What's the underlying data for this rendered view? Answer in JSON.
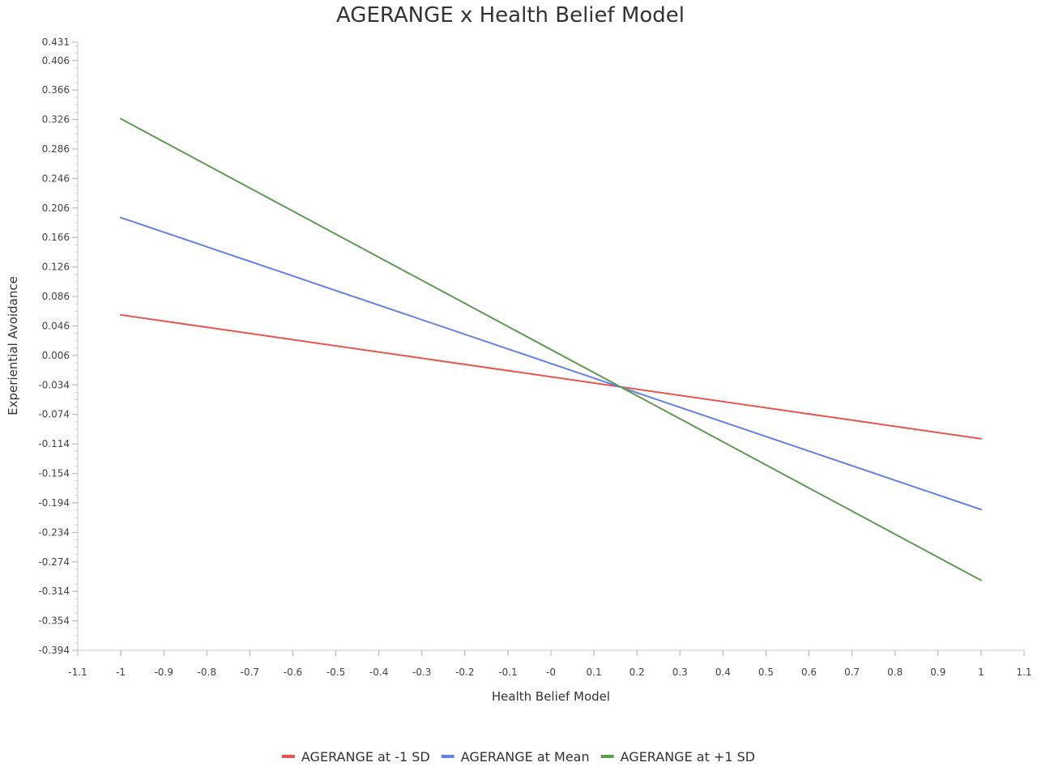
{
  "chart_data": {
    "type": "line",
    "title": "AGERANGE x Health Belief Model",
    "xlabel": "Health Belief Model",
    "ylabel": "Experiential Avoidance",
    "xlim": [
      -1.1,
      1.1
    ],
    "ylim": [
      -0.394,
      0.431
    ],
    "x_ticks": [
      -1.1,
      -1,
      -0.9,
      -0.8,
      -0.7,
      -0.6,
      -0.5,
      -0.4,
      -0.3,
      -0.2,
      -0.1,
      0,
      0.1,
      0.2,
      0.3,
      0.4,
      0.5,
      0.6,
      0.7,
      0.8,
      0.9,
      1,
      1.1
    ],
    "x_tick_labels": [
      "-1.1",
      "-1",
      "-0.9",
      "-0.8",
      "-0.7",
      "-0.6",
      "-0.5",
      "-0.4",
      "-0.3",
      "-0.2",
      "-0.1",
      "-0",
      "0.1",
      "0.2",
      "0.3",
      "0.4",
      "0.5",
      "0.6",
      "0.7",
      "0.8",
      "0.9",
      "1",
      "1.1"
    ],
    "y_ticks": [
      0.431,
      0.406,
      0.366,
      0.326,
      0.286,
      0.246,
      0.206,
      0.166,
      0.126,
      0.086,
      0.046,
      0.006,
      -0.034,
      -0.074,
      -0.114,
      -0.154,
      -0.194,
      -0.234,
      -0.274,
      -0.314,
      -0.354,
      -0.394
    ],
    "y_tick_labels": [
      "0.431",
      "0.406",
      "0.366",
      "0.326",
      "0.286",
      "0.246",
      "0.206",
      "0.166",
      "0.126",
      "0.086",
      "0.046",
      "0.006",
      "-0.034",
      "-0.074",
      "-0.114",
      "-0.154",
      "-0.194",
      "-0.234",
      "-0.274",
      "-0.314",
      "-0.354",
      "-0.394"
    ],
    "grid": false,
    "legend_position": "bottom-center",
    "series": [
      {
        "name": "AGERANGE at -1 SD",
        "color": "#e8554e",
        "x": [
          -1,
          1
        ],
        "y": [
          0.061,
          -0.107
        ]
      },
      {
        "name": "AGERANGE at Mean",
        "color": "#6482e6",
        "x": [
          -1,
          1
        ],
        "y": [
          0.193,
          -0.203
        ]
      },
      {
        "name": "AGERANGE at +1 SD",
        "color": "#5d9a52",
        "x": [
          -1,
          1
        ],
        "y": [
          0.327,
          -0.299
        ]
      }
    ]
  }
}
